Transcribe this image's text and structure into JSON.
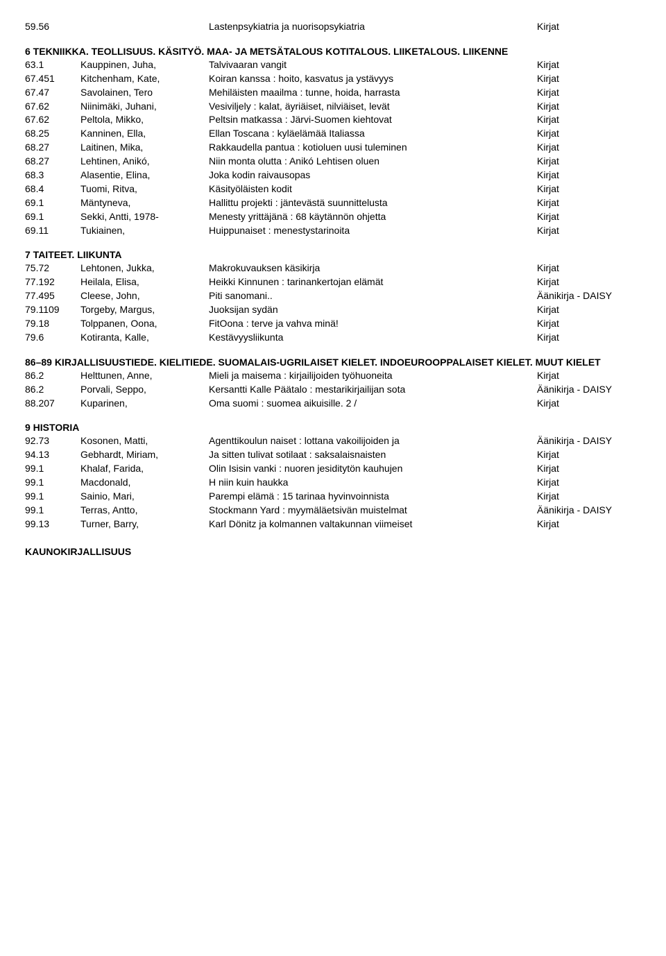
{
  "sections": [
    {
      "heading": "",
      "rows": [
        {
          "code": "59.56",
          "author": "",
          "title": "Lastenpsykiatria ja nuorisopsykiatria",
          "type": "Kirjat"
        }
      ]
    },
    {
      "heading": "6 TEKNIIKKA. TEOLLISUUS. KÄSITYÖ. MAA- JA METSÄTALOUS KOTITALOUS. LIIKETALOUS. LIIKENNE",
      "rows": [
        {
          "code": "63.1",
          "author": "Kauppinen, Juha,",
          "title": "Talvivaaran vangit",
          "type": "Kirjat"
        },
        {
          "code": "67.451",
          "author": "Kitchenham, Kate,",
          "title": "Koiran kanssa : hoito, kasvatus ja ystävyys",
          "type": "Kirjat"
        },
        {
          "code": "67.47",
          "author": "Savolainen, Tero",
          "title": "Mehiläisten maailma : tunne, hoida, harrasta",
          "type": "Kirjat"
        },
        {
          "code": "67.62",
          "author": "Niinimäki, Juhani,",
          "title": "Vesiviljely : kalat, äyriäiset, nilviäiset, levät",
          "type": "Kirjat"
        },
        {
          "code": "67.62",
          "author": "Peltola, Mikko,",
          "title": "Peltsin matkassa : Järvi-Suomen kiehtovat",
          "type": "Kirjat"
        },
        {
          "code": "68.25",
          "author": "Kanninen, Ella,",
          "title": "Ellan Toscana : kyläelämää Italiassa",
          "type": "Kirjat"
        },
        {
          "code": "68.27",
          "author": "Laitinen, Mika,",
          "title": "Rakkaudella pantua : kotioluen uusi tuleminen",
          "type": "Kirjat"
        },
        {
          "code": "68.27",
          "author": "Lehtinen, Anikó,",
          "title": "Niin monta olutta : Anikó Lehtisen oluen",
          "type": "Kirjat"
        },
        {
          "code": "68.3",
          "author": "Alasentie, Elina,",
          "title": "Joka kodin raivausopas",
          "type": "Kirjat"
        },
        {
          "code": "68.4",
          "author": "Tuomi, Ritva,",
          "title": "Käsityöläisten kodit",
          "type": "Kirjat"
        },
        {
          "code": "69.1",
          "author": "Mäntyneva,",
          "title": "Hallittu projekti : jäntevästä suunnittelusta",
          "type": "Kirjat"
        },
        {
          "code": "69.1",
          "author": "Sekki, Antti, 1978-",
          "title": "Menesty yrittäjänä : 68 käytännön ohjetta",
          "type": "Kirjat"
        },
        {
          "code": "69.11",
          "author": "Tukiainen,",
          "title": "Huippunaiset : menestystarinoita",
          "type": "Kirjat"
        }
      ]
    },
    {
      "heading": "7 TAITEET. LIIKUNTA",
      "rows": [
        {
          "code": "75.72",
          "author": "Lehtonen, Jukka,",
          "title": "Makrokuvauksen käsikirja",
          "type": "Kirjat"
        },
        {
          "code": "77.192",
          "author": "Heilala, Elisa,",
          "title": "Heikki Kinnunen : tarinankertojan elämät",
          "type": "Kirjat"
        },
        {
          "code": "77.495",
          "author": "Cleese, John,",
          "title": "Piti sanomani..",
          "type": "Äänikirja - DAISY"
        },
        {
          "code": "79.1109",
          "author": "Torgeby, Margus,",
          "title": "Juoksijan sydän",
          "type": "Kirjat"
        },
        {
          "code": "79.18",
          "author": "Tolppanen, Oona,",
          "title": "FitOona : terve ja vahva minä!",
          "type": "Kirjat"
        },
        {
          "code": "79.6",
          "author": "Kotiranta, Kalle,",
          "title": "Kestävyysliikunta",
          "type": "Kirjat"
        }
      ]
    },
    {
      "heading": "86–89 KIRJALLISUUSTIEDE. KIELITIEDE. SUOMALAIS-UGRILAISET KIELET. INDOEUROOPPALAISET KIELET. MUUT KIELET",
      "rows": [
        {
          "code": "86.2",
          "author": "Helttunen, Anne,",
          "title": "Mieli ja maisema : kirjailijoiden työhuoneita",
          "type": "Kirjat"
        },
        {
          "code": "86.2",
          "author": "Porvali, Seppo,",
          "title": "Kersantti Kalle Päätalo : mestarikirjailijan sota",
          "type": "Äänikirja - DAISY"
        },
        {
          "code": "88.207",
          "author": "Kuparinen,",
          "title": "Oma suomi : suomea aikuisille. 2 /",
          "type": "Kirjat"
        }
      ]
    },
    {
      "heading": "9 HISTORIA",
      "rows": [
        {
          "code": "92.73",
          "author": "Kosonen, Matti,",
          "title": "Agenttikoulun naiset : lottana vakoilijoiden ja",
          "type": "Äänikirja - DAISY"
        },
        {
          "code": "94.13",
          "author": "Gebhardt, Miriam,",
          "title": "Ja sitten tulivat sotilaat : saksalaisnaisten",
          "type": "Kirjat"
        },
        {
          "code": "99.1",
          "author": "Khalaf, Farida,",
          "title": "Olin Isisin vanki : nuoren jesiditytön kauhujen",
          "type": "Kirjat"
        },
        {
          "code": "99.1",
          "author": "Macdonald,",
          "title": "H niin kuin haukka",
          "type": "Kirjat"
        },
        {
          "code": "99.1",
          "author": "Sainio, Mari,",
          "title": "Parempi elämä : 15 tarinaa hyvinvoinnista",
          "type": "Kirjat"
        },
        {
          "code": "99.1",
          "author": "Terras, Antto,",
          "title": "Stockmann Yard : myymäläetsivän muistelmat",
          "type": "Äänikirja - DAISY"
        },
        {
          "code": "99.13",
          "author": "Turner, Barry,",
          "title": "Karl Dönitz ja kolmannen valtakunnan viimeiset",
          "type": "Kirjat"
        }
      ]
    }
  ],
  "footer_heading": "KAUNOKIRJALLISUUS"
}
